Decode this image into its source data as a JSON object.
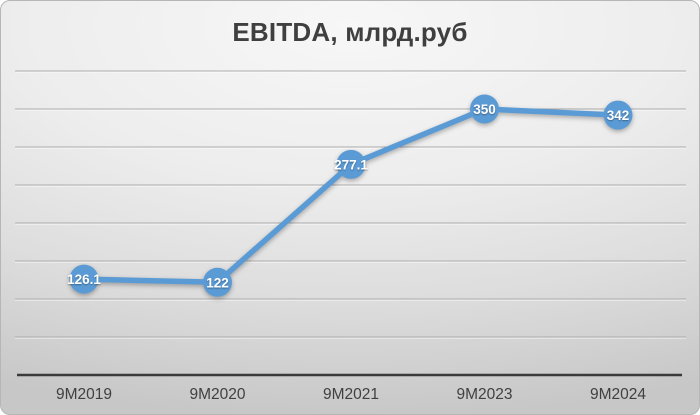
{
  "chart": {
    "accent_color": "#5B9BD5",
    "title_color": "#3f3f3f",
    "axis_line_color": "#3a3a3a",
    "gridline_color": "#ababab",
    "category_label_color": "#404040",
    "data_label_color": "#ffffff"
  },
  "chart_data": {
    "type": "line",
    "title": "EBITDA, млрд.руб",
    "categories": [
      "9M2019",
      "9M2020",
      "9M2021",
      "9M2023",
      "9M2024"
    ],
    "values": [
      126.1,
      122,
      277.1,
      350,
      342
    ],
    "data_labels": [
      "126.1",
      "122",
      "277.1",
      "350",
      "342"
    ],
    "series_name": "EBITDA",
    "xlabel": "",
    "ylabel": "",
    "ylim": [
      0,
      420
    ],
    "gridline_interval": 50,
    "grid": true,
    "legend": "none",
    "marker": "circle",
    "data_labels_position": "center"
  }
}
